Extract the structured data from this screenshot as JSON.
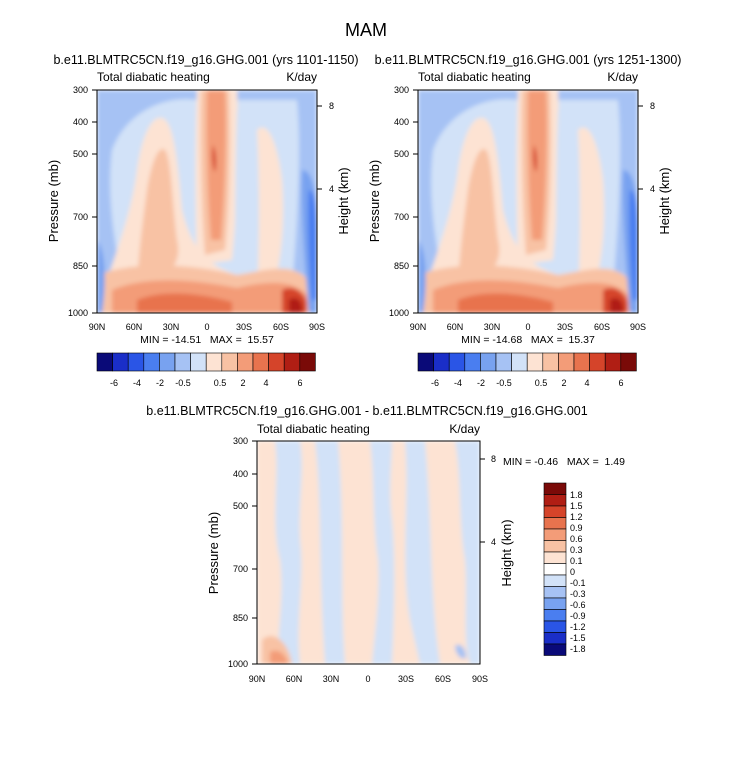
{
  "figure_title": "MAM",
  "chart_data": [
    {
      "type": "heatmap",
      "title": "b.e11.BLMTRC5CN.f19_g16.GHG.001 (yrs 1101-1150)",
      "left_label": "Total diabatic heating",
      "right_label": "K/day",
      "ylabel": "Pressure (mb)",
      "y2label": "Height (km)",
      "xticks": [
        "90N",
        "60N",
        "30N",
        "0",
        "30S",
        "60S",
        "90S"
      ],
      "yticks": [
        "300",
        "400",
        "500",
        "700",
        "850",
        "1000"
      ],
      "y2ticks": [
        "8",
        "4"
      ],
      "ylim": [
        1000,
        300
      ],
      "min": -14.51,
      "max": 15.57,
      "stats": "MIN = -14.51   MAX =  15.57",
      "colorbar_labels": [
        "-6",
        "-4",
        "-2",
        "-0.5",
        "0.5",
        "2",
        "4",
        "6"
      ]
    },
    {
      "type": "heatmap",
      "title": "b.e11.BLMTRC5CN.f19_g16.GHG.001 (yrs 1251-1300)",
      "left_label": "Total diabatic heating",
      "right_label": "K/day",
      "ylabel": "Pressure (mb)",
      "y2label": "Height (km)",
      "xticks": [
        "90N",
        "60N",
        "30N",
        "0",
        "30S",
        "60S",
        "90S"
      ],
      "yticks": [
        "300",
        "400",
        "500",
        "700",
        "850",
        "1000"
      ],
      "y2ticks": [
        "8",
        "4"
      ],
      "ylim": [
        1000,
        300
      ],
      "min": -14.68,
      "max": 15.37,
      "stats": "MIN = -14.68   MAX =  15.37",
      "colorbar_labels": [
        "-6",
        "-4",
        "-2",
        "-0.5",
        "0.5",
        "2",
        "4",
        "6"
      ]
    },
    {
      "type": "heatmap",
      "title": "b.e11.BLMTRC5CN.f19_g16.GHG.001 - b.e11.BLMTRC5CN.f19_g16.GHG.001",
      "left_label": "Total diabatic heating",
      "right_label": "K/day",
      "ylabel": "Pressure (mb)",
      "y2label": "Height (km)",
      "xticks": [
        "90N",
        "60N",
        "30N",
        "0",
        "30S",
        "60S",
        "90S"
      ],
      "yticks": [
        "300",
        "400",
        "500",
        "700",
        "850",
        "1000"
      ],
      "y2ticks": [
        "8",
        "4"
      ],
      "ylim": [
        1000,
        300
      ],
      "min": -0.46,
      "max": 1.49,
      "stats": "MIN = -0.46   MAX =  1.49",
      "colorbar_labels": [
        "1.8",
        "1.5",
        "1.2",
        "0.9",
        "0.6",
        "0.3",
        "0.1",
        "0",
        "-0.1",
        "-0.3",
        "-0.6",
        "-0.9",
        "-1.2",
        "-1.5",
        "-1.8"
      ]
    }
  ],
  "colors": {
    "top_colorbar": [
      "#0a0a78",
      "#1a2ec8",
      "#2a55e6",
      "#4a7ef0",
      "#78a2f0",
      "#a6c2f4",
      "#d2e2f8",
      "#fde3d3",
      "#f8c2a4",
      "#f39c78",
      "#e8734e",
      "#d5442a",
      "#b01e14",
      "#7a0a08"
    ],
    "diff_colorbar": [
      "#7a0a08",
      "#b01e14",
      "#d5442a",
      "#e8734e",
      "#f39c78",
      "#f8c2a4",
      "#fde3d3",
      "#ffffff",
      "#d2e2f8",
      "#a6c2f4",
      "#78a2f0",
      "#4a7ef0",
      "#2a55e6",
      "#1a2ec8",
      "#0a0a78"
    ]
  }
}
